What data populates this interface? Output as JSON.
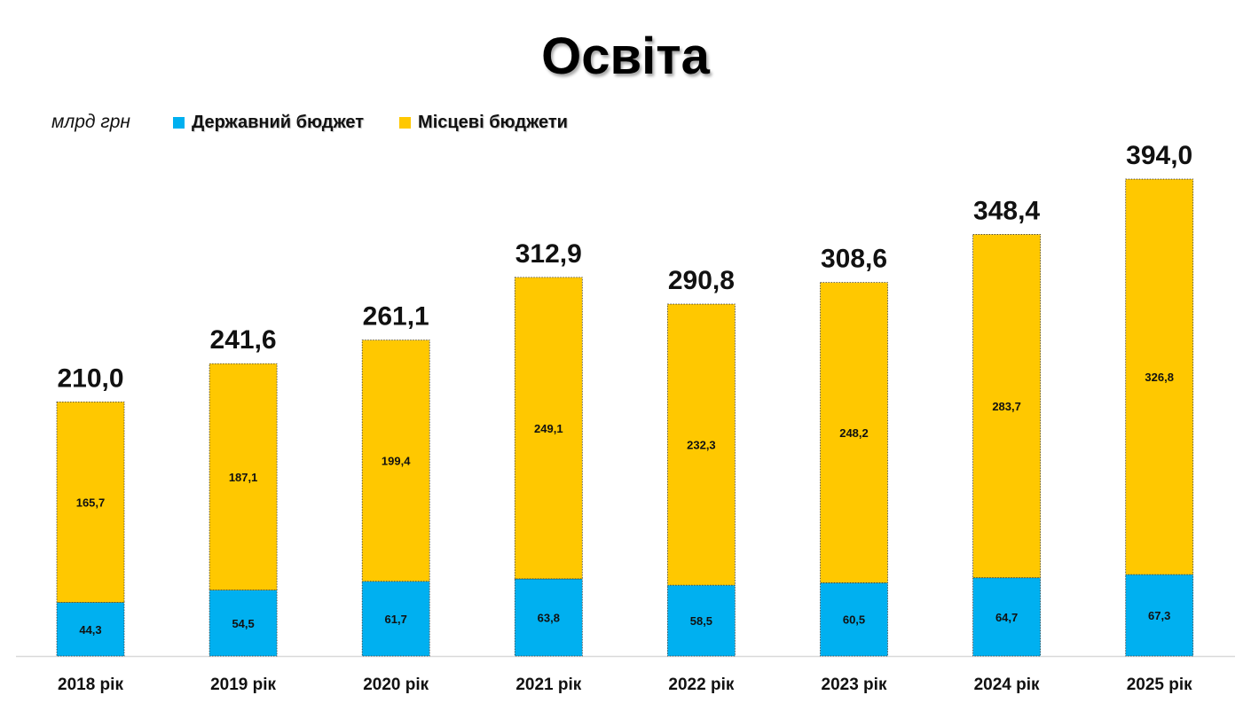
{
  "chart_data": {
    "type": "bar",
    "stacked": true,
    "title": "Освіта",
    "unit_label": "млрд грн",
    "categories": [
      "2018 рік",
      "2019 рік",
      "2020 рік",
      "2021 рік",
      "2022 рік",
      "2023 рік",
      "2024 рік",
      "2025 рік"
    ],
    "series": [
      {
        "name": "Державний бюджет",
        "color": "#00b0f0",
        "values": [
          44.3,
          54.5,
          61.7,
          63.8,
          58.5,
          60.5,
          64.7,
          67.3
        ],
        "labels": [
          "44,3",
          "54,5",
          "61,7",
          "63,8",
          "58,5",
          "60,5",
          "64,7",
          "67,3"
        ]
      },
      {
        "name": "Місцеві бюджети",
        "color": "#ffc800",
        "values": [
          165.7,
          187.1,
          199.4,
          249.1,
          232.3,
          248.2,
          283.7,
          326.8
        ],
        "labels": [
          "165,7",
          "187,1",
          "199,4",
          "249,1",
          "232,3",
          "248,2",
          "283,7",
          "326,8"
        ]
      }
    ],
    "totals": [
      210.0,
      241.6,
      261.1,
      312.9,
      290.8,
      308.6,
      348.4,
      394.0
    ],
    "total_labels": [
      "210,0",
      "241,6",
      "261,1",
      "312,9",
      "290,8",
      "308,6",
      "348,4",
      "394,0"
    ],
    "legend_position": "top-left",
    "grid": false
  }
}
